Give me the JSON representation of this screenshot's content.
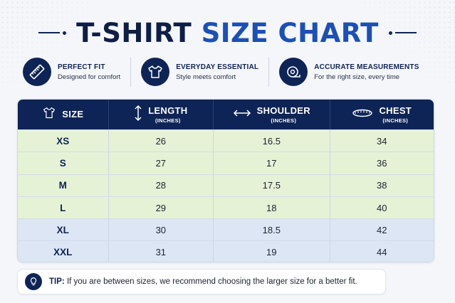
{
  "title": {
    "part1": "T-SHIRT",
    "part2": "SIZE CHART"
  },
  "features": [
    {
      "title": "PERFECT FIT",
      "subtitle": "Designed for comfort",
      "icon": "ruler-icon"
    },
    {
      "title": "EVERYDAY ESSENTIAL",
      "subtitle": "Style meets comfort",
      "icon": "tshirt-icon"
    },
    {
      "title": "ACCURATE MEASUREMENTS",
      "subtitle": "For the right size, every time",
      "icon": "tape-measure-icon"
    }
  ],
  "table": {
    "headers": [
      {
        "label": "SIZE",
        "unit": "",
        "icon": "tshirt-icon"
      },
      {
        "label": "LENGTH",
        "unit": "(INCHES)",
        "icon": "vertical-arrow-icon"
      },
      {
        "label": "SHOULDER",
        "unit": "(INCHES)",
        "icon": "horizontal-arrow-icon"
      },
      {
        "label": "CHEST",
        "unit": "(INCHES)",
        "icon": "tape-measure-icon"
      }
    ],
    "rows": [
      {
        "size": "XS",
        "length": "26",
        "shoulder": "16.5",
        "chest": "34"
      },
      {
        "size": "S",
        "length": "27",
        "shoulder": "17",
        "chest": "36"
      },
      {
        "size": "M",
        "length": "28",
        "shoulder": "17.5",
        "chest": "38"
      },
      {
        "size": "L",
        "length": "29",
        "shoulder": "18",
        "chest": "40"
      },
      {
        "size": "XL",
        "length": "30",
        "shoulder": "18.5",
        "chest": "42"
      },
      {
        "size": "XXL",
        "length": "31",
        "shoulder": "19",
        "chest": "44"
      }
    ]
  },
  "tip": {
    "label": "TIP:",
    "text": "If you are between sizes, we recommend choosing the larger size for a better fit.",
    "icon": "lightbulb-icon"
  },
  "colors": {
    "navy": "#0e2456",
    "blue_accent": "#1c4fb8",
    "row_green": "#e5f2d6",
    "row_blue": "#dce6f5"
  }
}
